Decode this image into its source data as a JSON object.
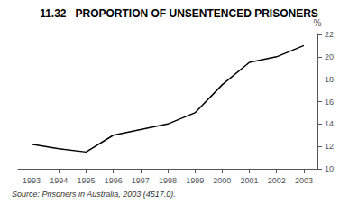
{
  "chart_data": {
    "type": "line",
    "title": "11.32   PROPORTION OF UNSENTENCED PRISONERS",
    "x": [
      1993,
      1994,
      1995,
      1996,
      1997,
      1998,
      1999,
      2000,
      2001,
      2002,
      2003
    ],
    "values": [
      12.2,
      11.8,
      11.5,
      13.0,
      13.5,
      14.0,
      15.0,
      17.5,
      19.5,
      20.0,
      21.0
    ],
    "color": "#000000",
    "xlim": [
      1992.5,
      2003.5
    ],
    "xticks": [
      1993,
      1994,
      1995,
      1996,
      1997,
      1998,
      1999,
      2000,
      2001,
      2002,
      2003
    ],
    "ylim": [
      10,
      22
    ],
    "yticks": [
      10,
      12,
      14,
      16,
      18,
      20,
      22
    ],
    "ylabel": "%",
    "source": "Source: Prisoners in Australia, 2003 (4517.0).",
    "grid": false
  }
}
